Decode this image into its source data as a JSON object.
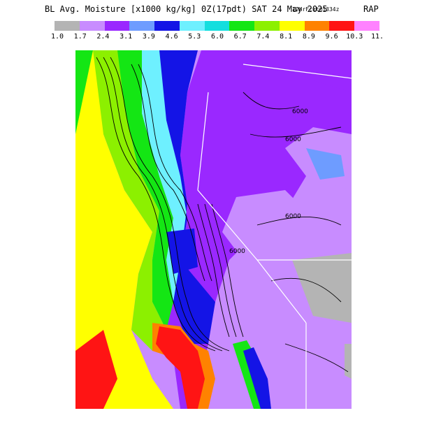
{
  "title": {
    "main": "BL Avg. Moisture [x1000 kg/kg] 0Z(17pdt) SAT 24 May 2025",
    "sub": "12hrFcst@1334z",
    "model": "RAP"
  },
  "legend": {
    "colors": [
      "#b4b4b4",
      "#c88cff",
      "#9a28ff",
      "#6e9cff",
      "#1414e6",
      "#6ef0ff",
      "#14dede",
      "#14e614",
      "#8cf000",
      "#ffff00",
      "#ff8200",
      "#ff1414",
      "#ff82ff"
    ],
    "ticks": [
      "1.0",
      "1.7",
      "2.4",
      "3.1",
      "3.9",
      "4.6",
      "5.3",
      "6.0",
      "6.7",
      "7.4",
      "8.1",
      "8.9",
      "9.6",
      "10.3",
      "11."
    ]
  },
  "map": {
    "contour_labels": [
      "6000",
      "6000",
      "6000",
      "6000"
    ]
  }
}
